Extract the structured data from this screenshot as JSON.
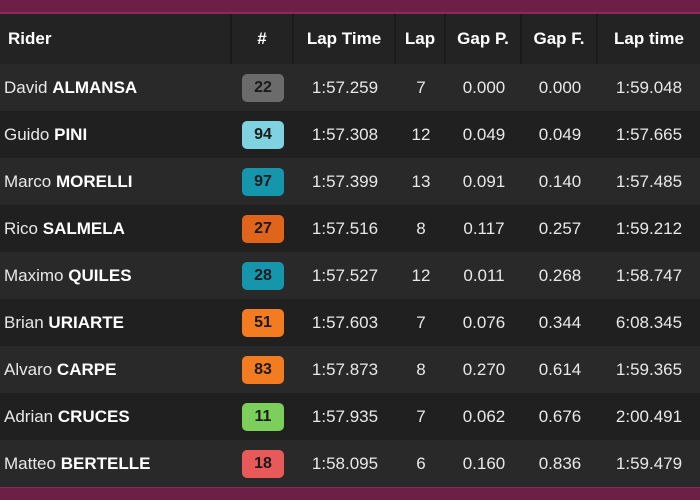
{
  "table": {
    "headers": {
      "rider": "Rider",
      "number": "#",
      "lap_time": "Lap Time",
      "lap": "Lap",
      "gap_prev": "Gap P.",
      "gap_first": "Gap F.",
      "last_lap_time": "Lap time"
    },
    "rows": [
      {
        "first": "David",
        "last": "ALMANSA",
        "number": "22",
        "badge_color": "#6b6b6b",
        "lap_time": "1:57.259",
        "lap": "7",
        "gap_prev": "0.000",
        "gap_first": "0.000",
        "last_lap_time": "1:59.048"
      },
      {
        "first": "Guido",
        "last": "PINI",
        "number": "94",
        "badge_color": "#7fd3e0",
        "lap_time": "1:57.308",
        "lap": "12",
        "gap_prev": "0.049",
        "gap_first": "0.049",
        "last_lap_time": "1:57.665"
      },
      {
        "first": "Marco",
        "last": "MORELLI",
        "number": "97",
        "badge_color": "#1596ad",
        "lap_time": "1:57.399",
        "lap": "13",
        "gap_prev": "0.091",
        "gap_first": "0.140",
        "last_lap_time": "1:57.485"
      },
      {
        "first": "Rico",
        "last": "SALMELA",
        "number": "27",
        "badge_color": "#e0651a",
        "lap_time": "1:57.516",
        "lap": "8",
        "gap_prev": "0.117",
        "gap_first": "0.257",
        "last_lap_time": "1:59.212"
      },
      {
        "first": "Maximo",
        "last": "QUILES",
        "number": "28",
        "badge_color": "#1596ad",
        "lap_time": "1:57.527",
        "lap": "12",
        "gap_prev": "0.011",
        "gap_first": "0.268",
        "last_lap_time": "1:58.747"
      },
      {
        "first": "Brian",
        "last": "URIARTE",
        "number": "51",
        "badge_color": "#f47c20",
        "lap_time": "1:57.603",
        "lap": "7",
        "gap_prev": "0.076",
        "gap_first": "0.344",
        "last_lap_time": "6:08.345"
      },
      {
        "first": "Alvaro",
        "last": "CARPE",
        "number": "83",
        "badge_color": "#f47c20",
        "lap_time": "1:57.873",
        "lap": "8",
        "gap_prev": "0.270",
        "gap_first": "0.614",
        "last_lap_time": "1:59.365"
      },
      {
        "first": "Adrian",
        "last": "CRUCES",
        "number": "11",
        "badge_color": "#7ccf5a",
        "lap_time": "1:57.935",
        "lap": "7",
        "gap_prev": "0.062",
        "gap_first": "0.676",
        "last_lap_time": "2:00.491"
      },
      {
        "first": "Matteo",
        "last": "BERTELLE",
        "number": "18",
        "badge_color": "#e85a5a",
        "lap_time": "1:58.095",
        "lap": "6",
        "gap_prev": "0.160",
        "gap_first": "0.836",
        "last_lap_time": "1:59.479"
      }
    ]
  }
}
